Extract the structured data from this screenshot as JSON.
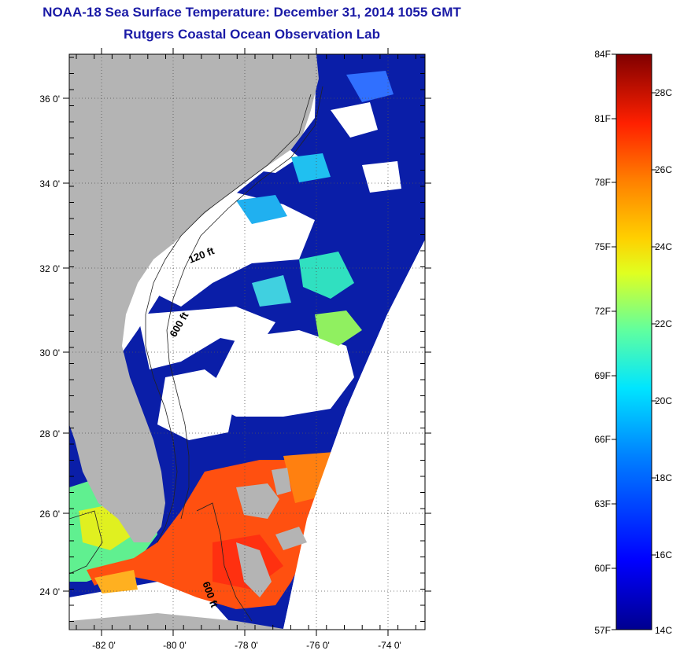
{
  "header": {
    "title": "NOAA-18 Sea Surface Temperature:  December 31, 2014 1055 GMT",
    "subtitle": "Rutgers Coastal Ocean Observation Lab"
  },
  "map": {
    "lat_labels": [
      "36 0'",
      "34 0'",
      "32 0'",
      "30 0'",
      "28 0'",
      "26 0'",
      "24 0'"
    ],
    "lon_labels": [
      "-82 0'",
      "-80 0'",
      "-78 0'",
      "-76 0'",
      "-74 0'"
    ],
    "contour_labels": [
      "120 ft",
      "600 ft",
      "600 ft"
    ],
    "land_color": "#b4b4b4",
    "cloud_color": "#ffffff"
  },
  "colorbar": {
    "fahrenheit_labels": [
      "84F",
      "81F",
      "78F",
      "75F",
      "72F",
      "69F",
      "66F",
      "63F",
      "60F",
      "57F"
    ],
    "celsius_labels": [
      "28C",
      "26C",
      "24C",
      "22C",
      "20C",
      "18C",
      "16C",
      "14C"
    ]
  }
}
